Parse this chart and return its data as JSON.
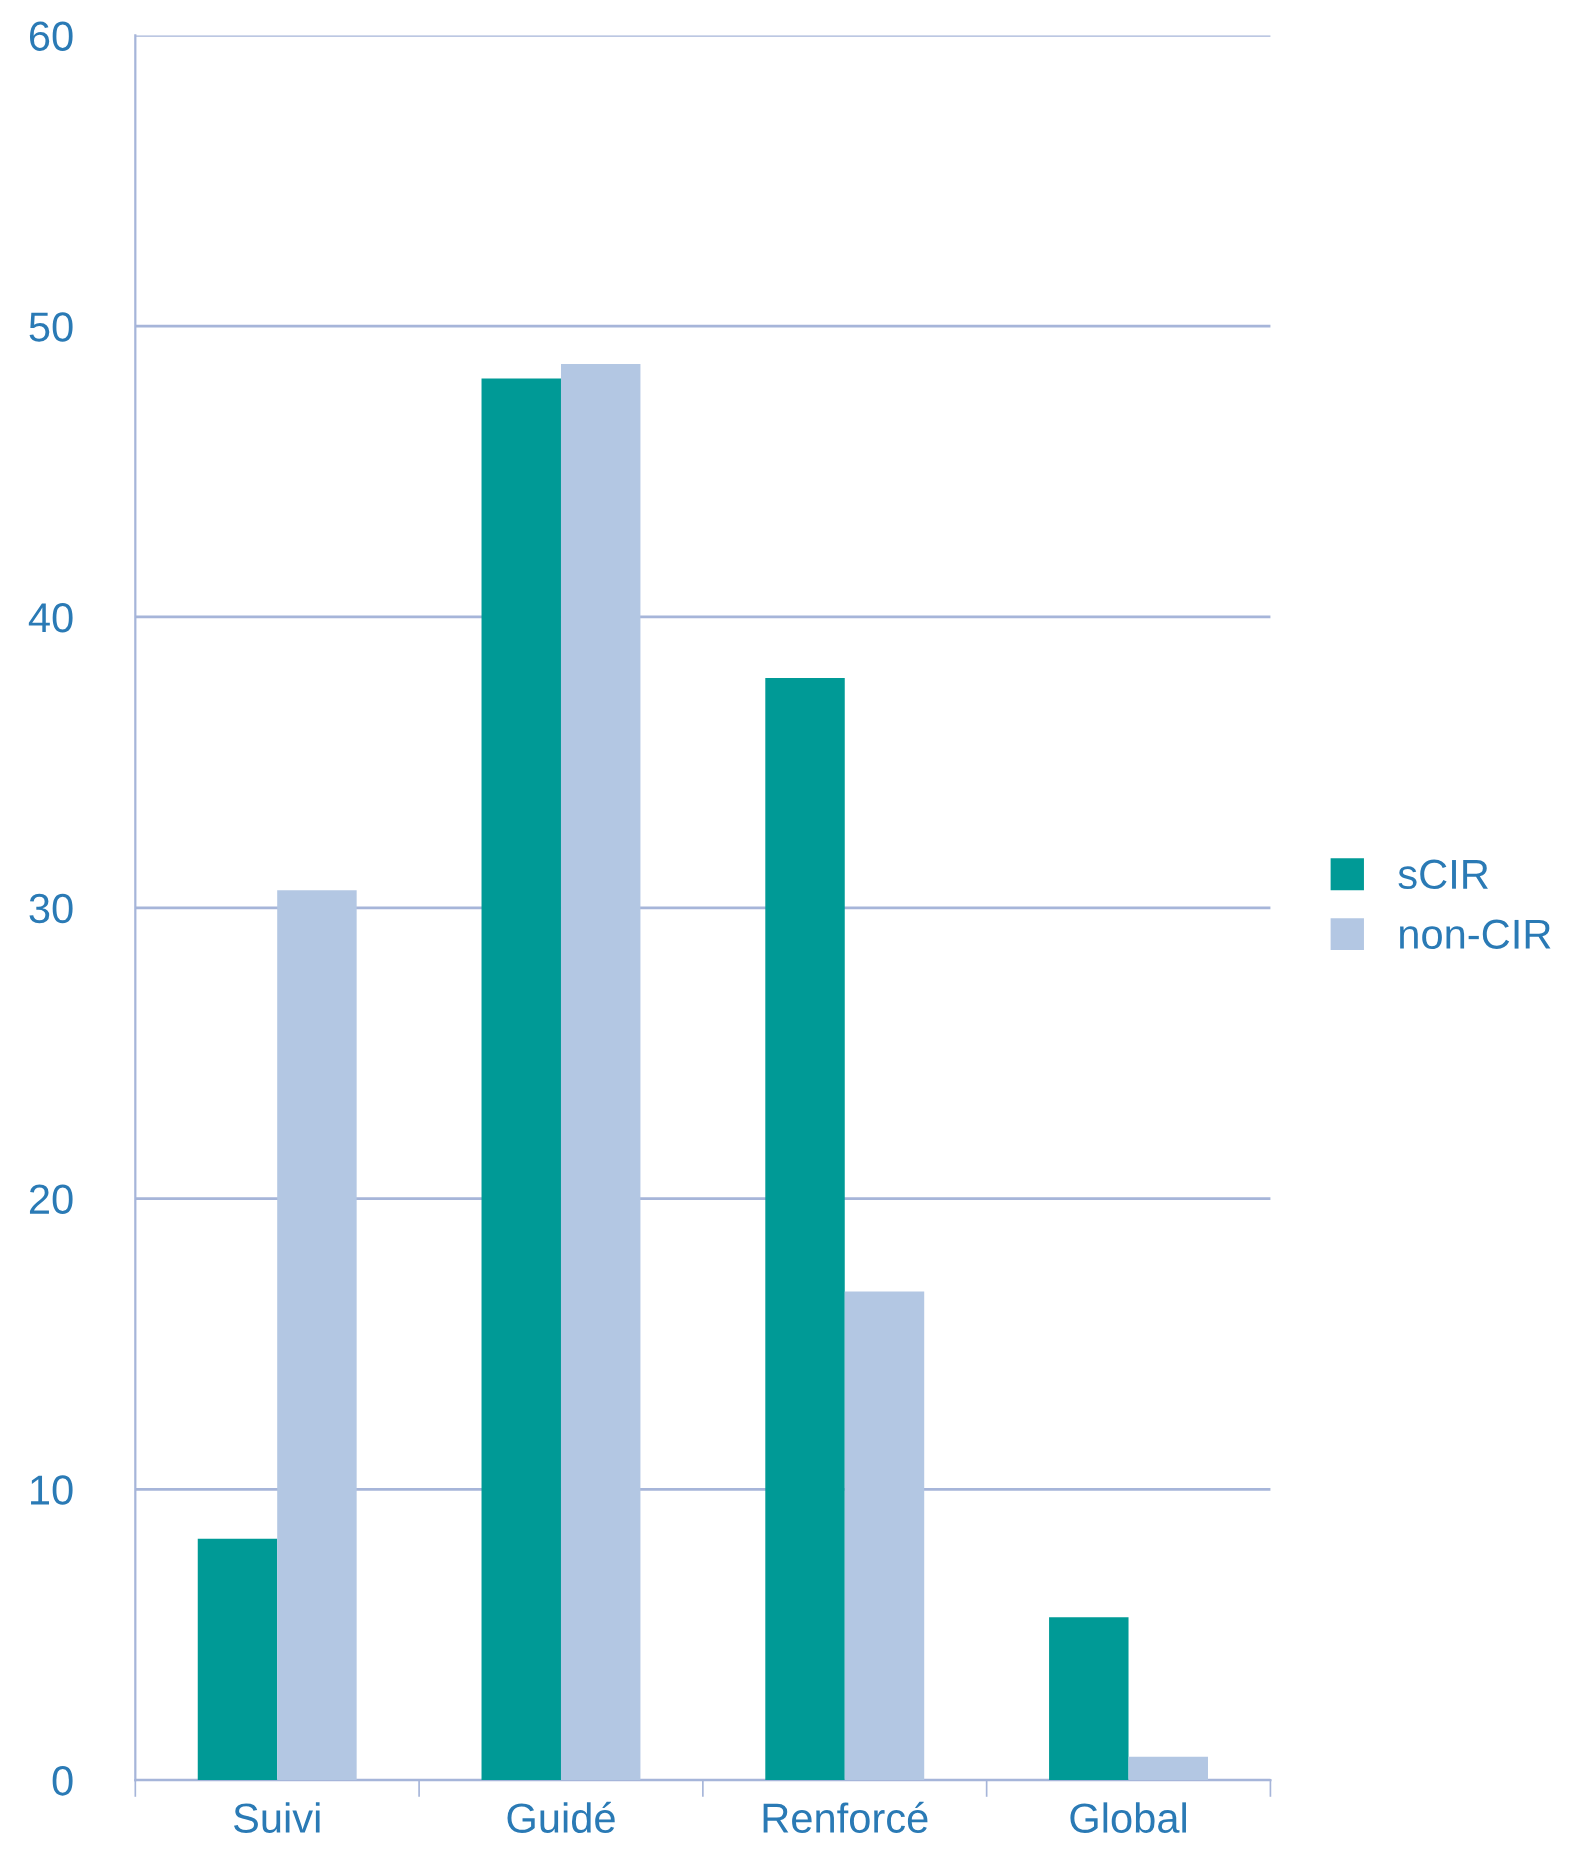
{
  "chart_data": {
    "type": "bar",
    "categories": [
      "Suivi",
      "Guidé",
      "Renforcé",
      "Global"
    ],
    "series": [
      {
        "name": "sCIR",
        "color": "#009a96",
        "values": [
          8.3,
          48.2,
          37.9,
          5.6
        ]
      },
      {
        "name": "non-CIR",
        "color": "#b3c7e3",
        "values": [
          30.6,
          48.7,
          16.8,
          0.8
        ]
      }
    ],
    "ylim": [
      0,
      60
    ],
    "yticks": [
      0,
      10,
      20,
      30,
      40,
      50,
      60
    ],
    "grid": "y",
    "legend": "right"
  }
}
